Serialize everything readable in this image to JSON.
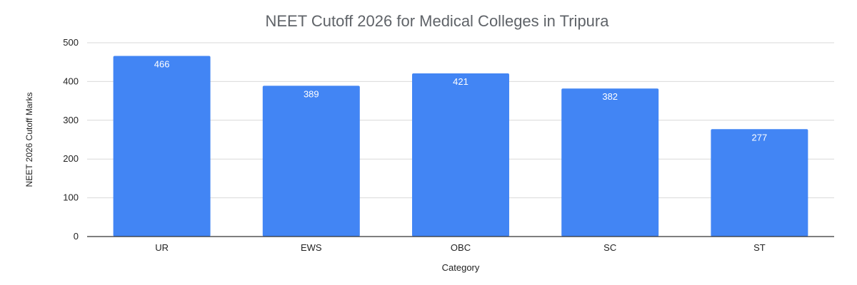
{
  "chart_data": {
    "type": "bar",
    "title": "NEET Cutoff 2026 for Medical Colleges in Tripura",
    "xlabel": "Category",
    "ylabel": "NEET 2026 Cutoff Marks",
    "categories": [
      "UR",
      "EWS",
      "OBC",
      "SC",
      "ST"
    ],
    "values": [
      466,
      389,
      421,
      382,
      277
    ],
    "ylim": [
      0,
      500
    ],
    "yticks": [
      0,
      100,
      200,
      300,
      400,
      500
    ],
    "grid": true,
    "data_labels": true,
    "bar_color": "#4285f4"
  }
}
